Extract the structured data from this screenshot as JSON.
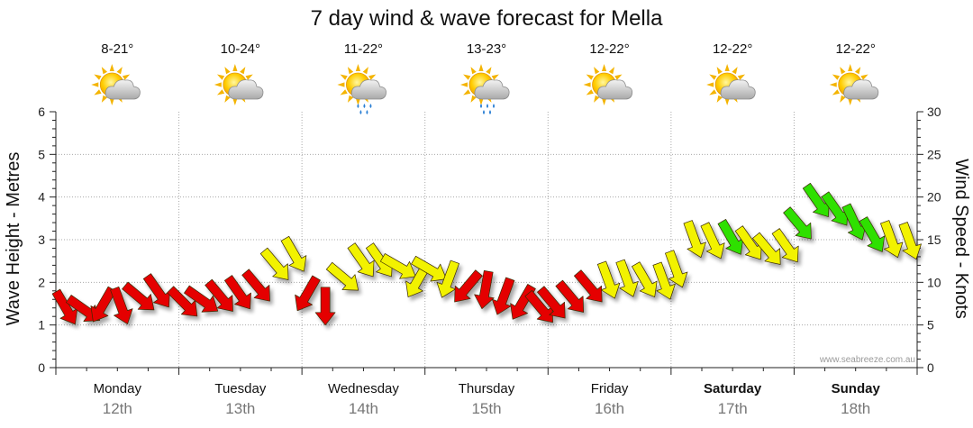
{
  "chart_data": {
    "type": "line",
    "title": "7 day wind & wave forecast for Mella",
    "ylabel_left": "Wave Height - Metres",
    "ylabel_right": "Wind Speed - Knots",
    "ylim_left": [
      0,
      6
    ],
    "ylim_right": [
      0,
      30
    ],
    "yticks_left": [
      "0",
      "1",
      "2",
      "3",
      "4",
      "5",
      "6"
    ],
    "yticks_right": [
      "0",
      "5",
      "10",
      "15",
      "20",
      "25",
      "30"
    ],
    "grid": true,
    "watermark": "www.seabreeze.com.au",
    "days": [
      {
        "name": "Monday",
        "date": "12th",
        "temp": "8-21°",
        "icon": "partly-cloudy-icon",
        "bold": false
      },
      {
        "name": "Tuesday",
        "date": "13th",
        "temp": "10-24°",
        "icon": "partly-cloudy-icon",
        "bold": false
      },
      {
        "name": "Wednesday",
        "date": "14th",
        "temp": "11-22°",
        "icon": "showers-icon",
        "bold": false
      },
      {
        "name": "Thursday",
        "date": "15th",
        "temp": "13-23°",
        "icon": "showers-icon",
        "bold": false
      },
      {
        "name": "Friday",
        "date": "16th",
        "temp": "12-22°",
        "icon": "partly-cloudy-icon",
        "bold": false
      },
      {
        "name": "Saturday",
        "date": "17th",
        "temp": "12-22°",
        "icon": "partly-cloudy-icon",
        "bold": true
      },
      {
        "name": "Sunday",
        "date": "18th",
        "temp": "12-22°",
        "icon": "partly-cloudy-icon",
        "bold": true
      }
    ],
    "wind_color_scale": {
      "under_10kn": "#e50000",
      "10_to_15kn": "#f2f200",
      "over_15kn": "#2ee000"
    },
    "wind_series": {
      "name": "Wind",
      "units": "knots",
      "points": [
        {
          "t": 0.08,
          "speed": 7.0,
          "dir": 240
        },
        {
          "t": 0.23,
          "speed": 6.8,
          "dir": 215
        },
        {
          "t": 0.38,
          "speed": 7.3,
          "dir": 300
        },
        {
          "t": 0.53,
          "speed": 7.2,
          "dir": 250
        },
        {
          "t": 0.68,
          "speed": 8.2,
          "dir": 220
        },
        {
          "t": 0.83,
          "speed": 8.9,
          "dir": 235
        },
        {
          "t": 1.04,
          "speed": 7.6,
          "dir": 225
        },
        {
          "t": 1.19,
          "speed": 7.9,
          "dir": 215
        },
        {
          "t": 1.34,
          "speed": 8.3,
          "dir": 230
        },
        {
          "t": 1.49,
          "speed": 8.7,
          "dir": 235
        },
        {
          "t": 1.64,
          "speed": 9.5,
          "dir": 230
        },
        {
          "t": 1.79,
          "speed": 12.0,
          "dir": 230
        },
        {
          "t": 1.94,
          "speed": 13.2,
          "dir": 240
        },
        {
          "t": 2.04,
          "speed": 8.6,
          "dir": 300
        },
        {
          "t": 2.19,
          "speed": 7.2,
          "dir": 270
        },
        {
          "t": 2.34,
          "speed": 10.5,
          "dir": 220
        },
        {
          "t": 2.49,
          "speed": 12.5,
          "dir": 235
        },
        {
          "t": 2.64,
          "speed": 12.5,
          "dir": 235
        },
        {
          "t": 2.79,
          "speed": 11.8,
          "dir": 210
        },
        {
          "t": 2.94,
          "speed": 10.2,
          "dir": 300
        },
        {
          "t": 3.04,
          "speed": 11.5,
          "dir": 210
        },
        {
          "t": 3.19,
          "speed": 10.3,
          "dir": 290
        },
        {
          "t": 3.34,
          "speed": 9.4,
          "dir": 310
        },
        {
          "t": 3.49,
          "speed": 9.1,
          "dir": 280
        },
        {
          "t": 3.64,
          "speed": 8.3,
          "dir": 290
        },
        {
          "t": 3.79,
          "speed": 7.6,
          "dir": 300
        },
        {
          "t": 3.94,
          "speed": 7.0,
          "dir": 230
        },
        {
          "t": 4.04,
          "speed": 7.5,
          "dir": 230
        },
        {
          "t": 4.19,
          "speed": 8.2,
          "dir": 230
        },
        {
          "t": 4.34,
          "speed": 9.4,
          "dir": 230
        },
        {
          "t": 4.49,
          "speed": 10.2,
          "dir": 250
        },
        {
          "t": 4.64,
          "speed": 10.4,
          "dir": 250
        },
        {
          "t": 4.79,
          "speed": 10.2,
          "dir": 240
        },
        {
          "t": 4.94,
          "speed": 10.1,
          "dir": 250
        },
        {
          "t": 5.04,
          "speed": 11.5,
          "dir": 250
        },
        {
          "t": 5.19,
          "speed": 15.0,
          "dir": 250
        },
        {
          "t": 5.34,
          "speed": 14.8,
          "dir": 245
        },
        {
          "t": 5.49,
          "speed": 15.2,
          "dir": 240
        },
        {
          "t": 5.64,
          "speed": 14.5,
          "dir": 235
        },
        {
          "t": 5.79,
          "speed": 13.8,
          "dir": 230
        },
        {
          "t": 5.94,
          "speed": 14.2,
          "dir": 235
        },
        {
          "t": 6.04,
          "speed": 16.8,
          "dir": 230
        },
        {
          "t": 6.19,
          "speed": 19.5,
          "dir": 235
        },
        {
          "t": 6.34,
          "speed": 18.5,
          "dir": 235
        },
        {
          "t": 6.49,
          "speed": 17.0,
          "dir": 245
        },
        {
          "t": 6.64,
          "speed": 15.5,
          "dir": 240
        },
        {
          "t": 6.79,
          "speed": 15.0,
          "dir": 250
        },
        {
          "t": 6.94,
          "speed": 14.8,
          "dir": 250
        }
      ]
    }
  }
}
